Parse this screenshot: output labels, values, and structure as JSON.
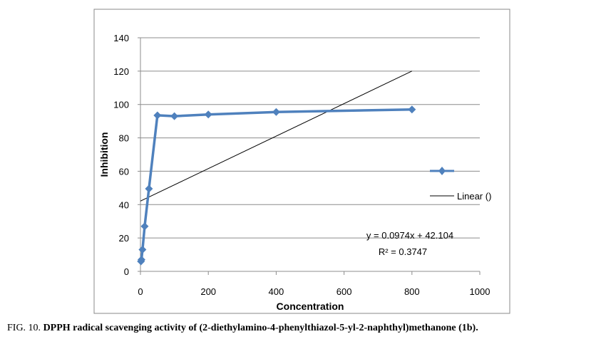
{
  "chart_data": {
    "type": "scatter",
    "xlabel": "Concentration",
    "ylabel": "Inhibition",
    "xlim": [
      0,
      1000
    ],
    "ylim": [
      0,
      140
    ],
    "x_ticks": [
      0,
      200,
      400,
      600,
      800,
      1000
    ],
    "y_ticks": [
      0,
      20,
      40,
      60,
      80,
      100,
      120,
      140
    ],
    "grid": "horizontal",
    "series": [
      {
        "values": [
          {
            "x": 1.5,
            "y": 6
          },
          {
            "x": 3,
            "y": 7
          },
          {
            "x": 6,
            "y": 13
          },
          {
            "x": 12.5,
            "y": 27
          },
          {
            "x": 25,
            "y": 49.5
          },
          {
            "x": 50,
            "y": 93.5
          },
          {
            "x": 100,
            "y": 93
          },
          {
            "x": 200,
            "y": 94
          },
          {
            "x": 400,
            "y": 95.5
          },
          {
            "x": 800,
            "y": 97
          }
        ],
        "color": "#4f81bd",
        "marker": "diamond"
      }
    ],
    "trendline": {
      "name": "Linear ()",
      "slope": 0.0974,
      "intercept": 42.104,
      "x_range": [
        0,
        800
      ],
      "equation": "y = 0.0974x + 42.104",
      "r2_label": "R² = 0.3747",
      "color": "#000000"
    },
    "legend_position": "right"
  },
  "caption": {
    "prefix": "FIG. 10.",
    "title": "DPPH radical scavenging activity of (2-diethylamino-4-phenylthiazol-5-yl-2-naphthyl)methanone (1b)."
  }
}
